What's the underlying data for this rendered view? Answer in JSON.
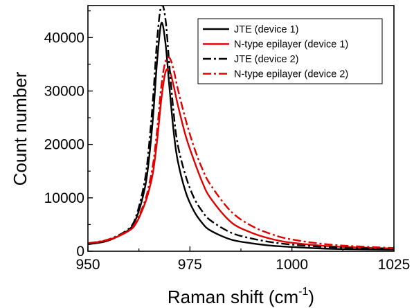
{
  "chart_data": {
    "type": "line",
    "xlabel": "Raman shift (cm",
    "xlabel_sup": "-1",
    "xlabel_close": ")",
    "ylabel": "Count number",
    "xlim": [
      950,
      1025
    ],
    "ylim": [
      0,
      46000
    ],
    "x_ticks": [
      950,
      975,
      1000,
      1025
    ],
    "y_ticks": [
      0,
      10000,
      20000,
      30000,
      40000
    ],
    "grid": false,
    "legend_position": "top-right",
    "series": [
      {
        "name": "JTE (device 1)",
        "color": "#000000",
        "dash": "solid",
        "x": [
          950,
          955,
          960,
          962,
          964,
          965,
          966,
          967,
          968,
          969,
          970,
          971,
          972,
          974,
          976,
          978,
          980,
          985,
          990,
          995,
          1000,
          1010,
          1025
        ],
        "y": [
          1300,
          2000,
          4000,
          6500,
          12000,
          17500,
          25500,
          36000,
          42700,
          39000,
          30500,
          22500,
          17000,
          11000,
          7500,
          5300,
          3900,
          2200,
          1500,
          1050,
          800,
          450,
          300
        ]
      },
      {
        "name": "N-type epilayer (device 1)",
        "color": "#e00000",
        "dash": "solid",
        "x": [
          950,
          955,
          960,
          962,
          964,
          965,
          966,
          967,
          968,
          969,
          970,
          971,
          972,
          974,
          976,
          978,
          980,
          985,
          990,
          995,
          1000,
          1010,
          1025
        ],
        "y": [
          1500,
          2100,
          3800,
          5500,
          9000,
          11500,
          15000,
          21000,
          28500,
          33500,
          33800,
          31000,
          27500,
          21500,
          17000,
          13000,
          10000,
          5500,
          3500,
          2300,
          1600,
          900,
          500
        ]
      },
      {
        "name": "JTE (device 2)",
        "color": "#000000",
        "dash": "dashdot",
        "x": [
          950,
          955,
          960,
          962,
          964,
          965,
          966,
          967,
          968,
          969,
          970,
          971,
          972,
          974,
          976,
          978,
          980,
          985,
          990,
          995,
          1000,
          1010,
          1025
        ],
        "y": [
          1400,
          2200,
          4200,
          7000,
          13500,
          20000,
          29000,
          40000,
          46000,
          43500,
          34500,
          26000,
          20000,
          14000,
          10000,
          7500,
          5800,
          3500,
          2400,
          1700,
          1250,
          750,
          450
        ]
      },
      {
        "name": "N-type epilayer (device 2)",
        "color": "#e00000",
        "dash": "dashdot",
        "x": [
          950,
          955,
          960,
          962,
          964,
          965,
          966,
          967,
          968,
          969,
          970,
          971,
          972,
          974,
          976,
          978,
          980,
          985,
          990,
          995,
          1000,
          1010,
          1025
        ],
        "y": [
          1500,
          2200,
          3900,
          5800,
          9500,
          12500,
          16500,
          23000,
          31000,
          35500,
          36200,
          34000,
          30500,
          24500,
          19500,
          15500,
          12500,
          7500,
          4800,
          3200,
          2200,
          1200,
          600
        ]
      }
    ]
  }
}
